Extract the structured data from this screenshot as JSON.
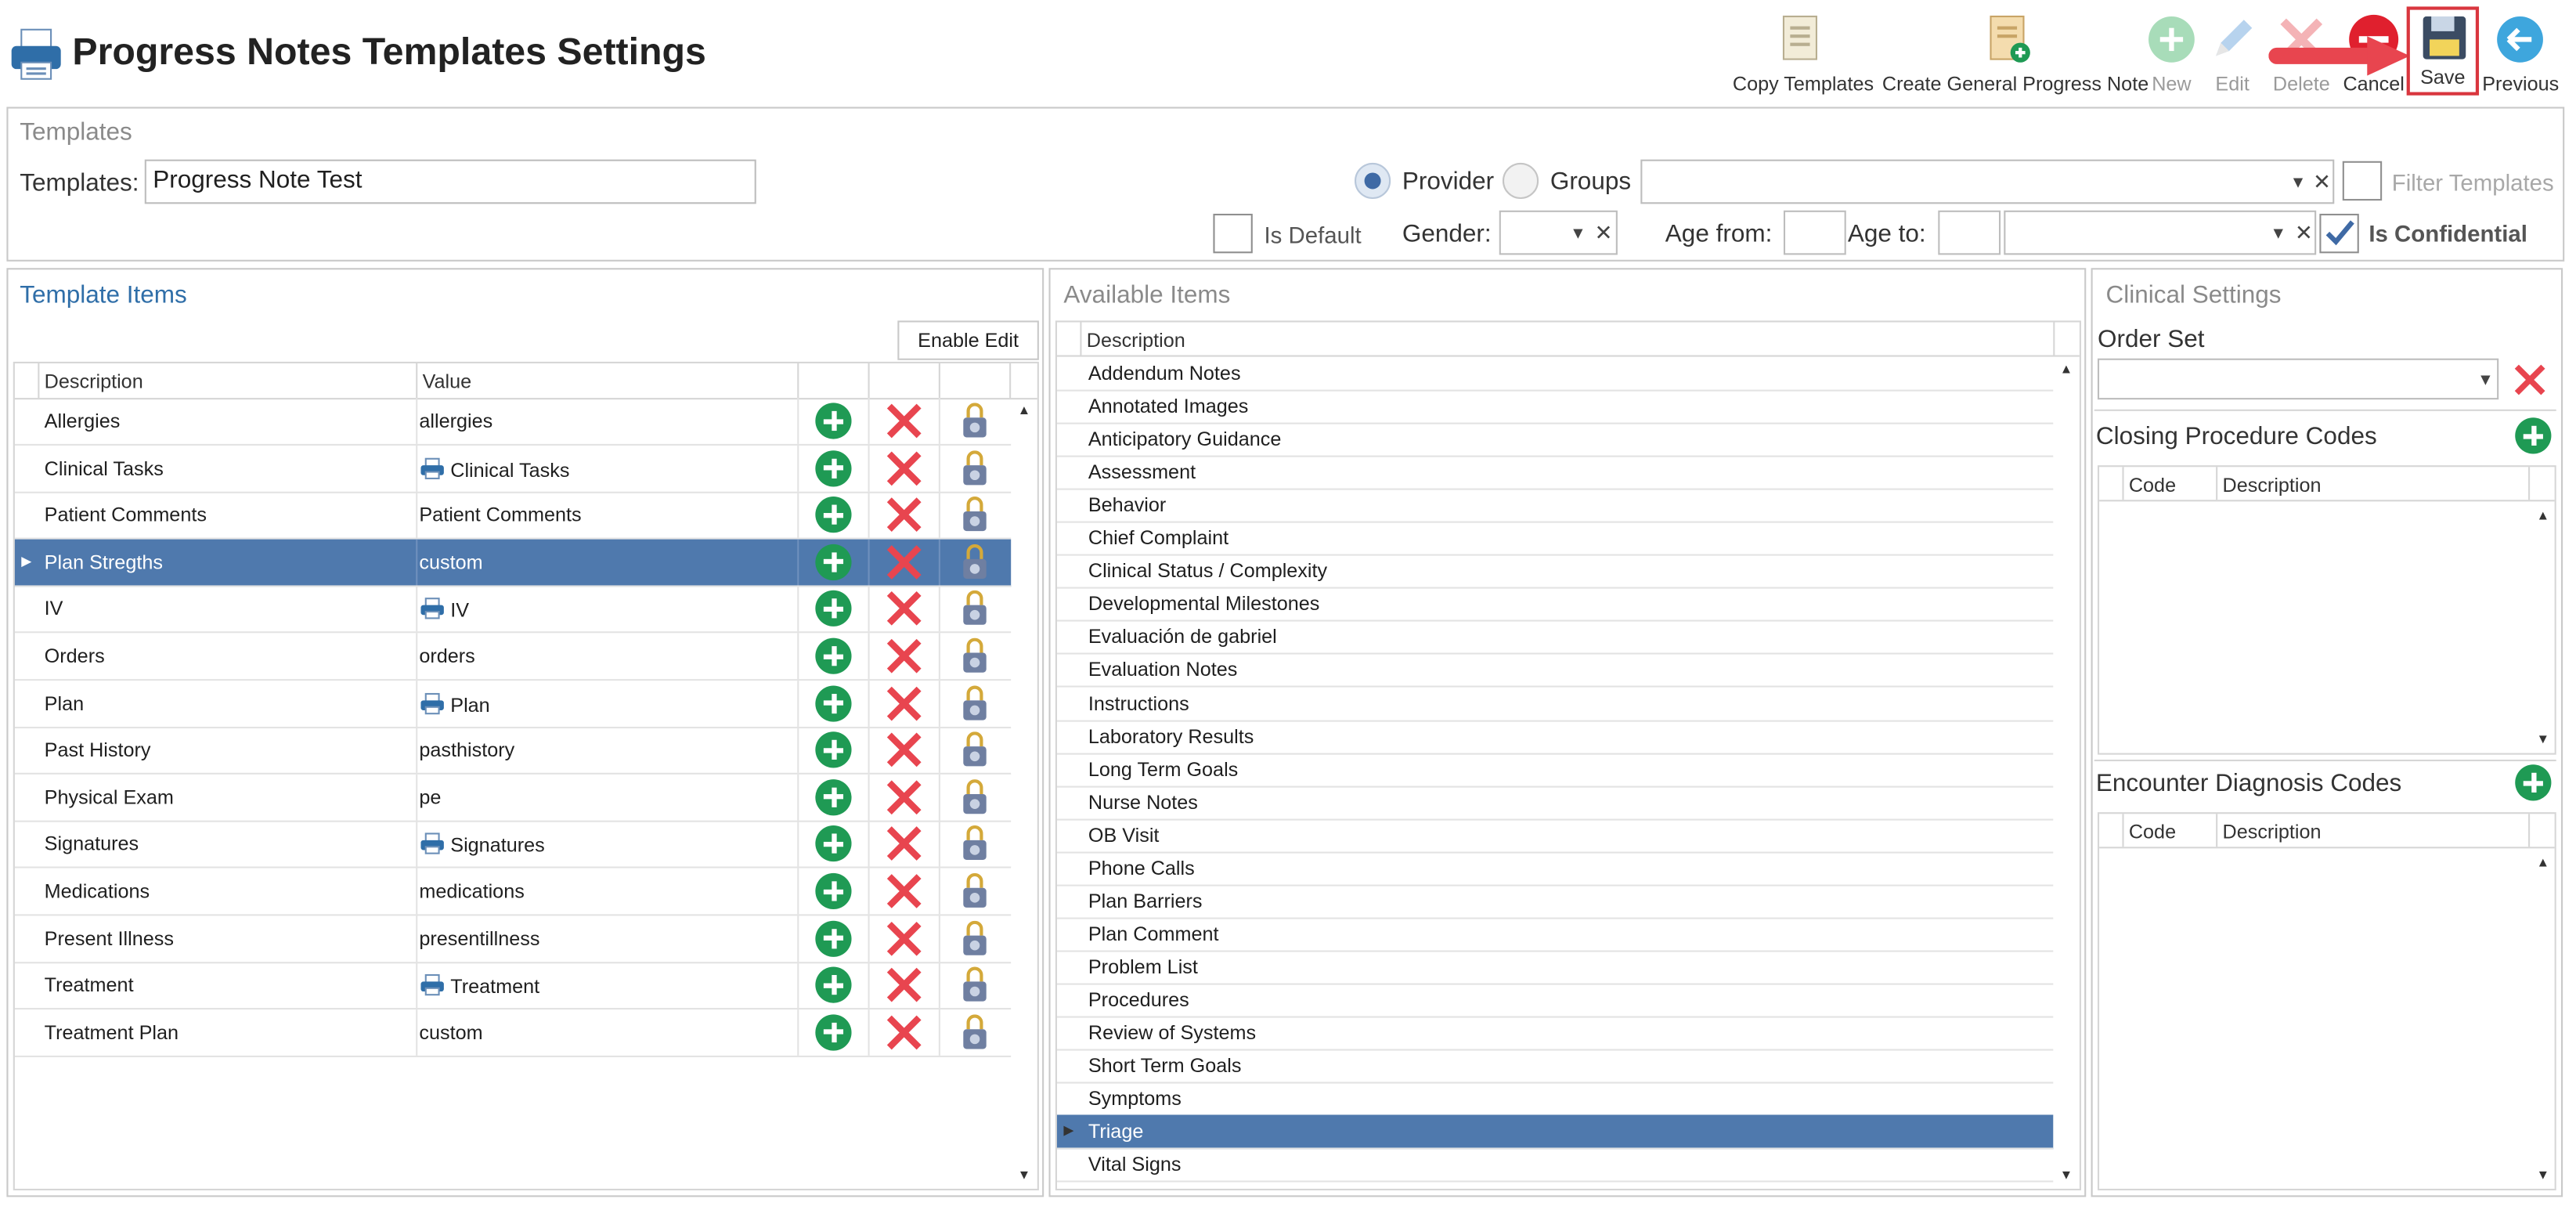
{
  "header": {
    "title": "Progress Notes Templates Settings",
    "toolbar": {
      "copy_templates": "Copy Templates",
      "create_general": "Create General Progress Note",
      "new": "New",
      "edit": "Edit",
      "delete": "Delete",
      "cancel": "Cancel",
      "save": "Save",
      "previous": "Previous"
    }
  },
  "templates_section": {
    "heading": "Templates",
    "templates_label": "Templates:",
    "templates_value": "Progress Note Test",
    "provider_label": "Provider",
    "groups_label": "Groups",
    "filter_placeholder": "Filter Templates",
    "is_default_label": "Is Default",
    "gender_label": "Gender:",
    "age_from_label": "Age from:",
    "age_to_label": "Age to:",
    "is_confidential_label": "Is Confidential",
    "provider_selected": true,
    "is_confidential_checked": true
  },
  "template_items": {
    "heading": "Template Items",
    "enable_edit": "Enable Edit",
    "columns": [
      "Description",
      "Value"
    ],
    "rows": [
      {
        "description": "Allergies",
        "value": "allergies",
        "icon": false
      },
      {
        "description": "Clinical Tasks",
        "value": "Clinical Tasks",
        "icon": true
      },
      {
        "description": "Patient Comments",
        "value": "Patient Comments",
        "icon": false
      },
      {
        "description": "Plan Stregths",
        "value": "custom",
        "icon": false,
        "selected": true
      },
      {
        "description": "IV",
        "value": "IV",
        "icon": true
      },
      {
        "description": "Orders",
        "value": "orders",
        "icon": false
      },
      {
        "description": "Plan",
        "value": "Plan",
        "icon": true
      },
      {
        "description": "Past History",
        "value": "pasthistory",
        "icon": false
      },
      {
        "description": "Physical Exam",
        "value": "pe",
        "icon": false
      },
      {
        "description": "Signatures",
        "value": "Signatures",
        "icon": true
      },
      {
        "description": "Medications",
        "value": "medications",
        "icon": false
      },
      {
        "description": "Present Illness",
        "value": "presentillness",
        "icon": false
      },
      {
        "description": "Treatment",
        "value": "Treatment",
        "icon": true
      },
      {
        "description": "Treatment Plan",
        "value": "custom",
        "icon": false
      }
    ]
  },
  "available_items": {
    "heading": "Available Items",
    "column": "Description",
    "rows": [
      "Addendum Notes",
      "Annotated Images",
      "Anticipatory Guidance",
      "Assessment",
      "Behavior",
      "Chief Complaint",
      "Clinical Status / Complexity",
      "Developmental Milestones",
      "Evaluación de gabriel",
      "Evaluation Notes",
      "Instructions",
      "Laboratory Results",
      "Long Term Goals",
      "Nurse Notes",
      "OB Visit",
      "Phone Calls",
      "Plan Barriers",
      "Plan Comment",
      "Problem List",
      "Procedures",
      "Review of Systems",
      "Short Term Goals",
      "Symptoms",
      "Triage",
      "Vital Signs"
    ],
    "selected": "Triage"
  },
  "clinical_settings": {
    "heading": "Clinical Settings",
    "order_set_label": "Order Set",
    "closing_label": "Closing Procedure Codes",
    "encounter_label": "Encounter Diagnosis Codes",
    "code_col": "Code",
    "desc_col": "Description"
  },
  "colors": {
    "accent_blue": "#4f79ad",
    "green": "#1f9a54",
    "red": "#e8454f",
    "highlight": "#d9363e"
  }
}
